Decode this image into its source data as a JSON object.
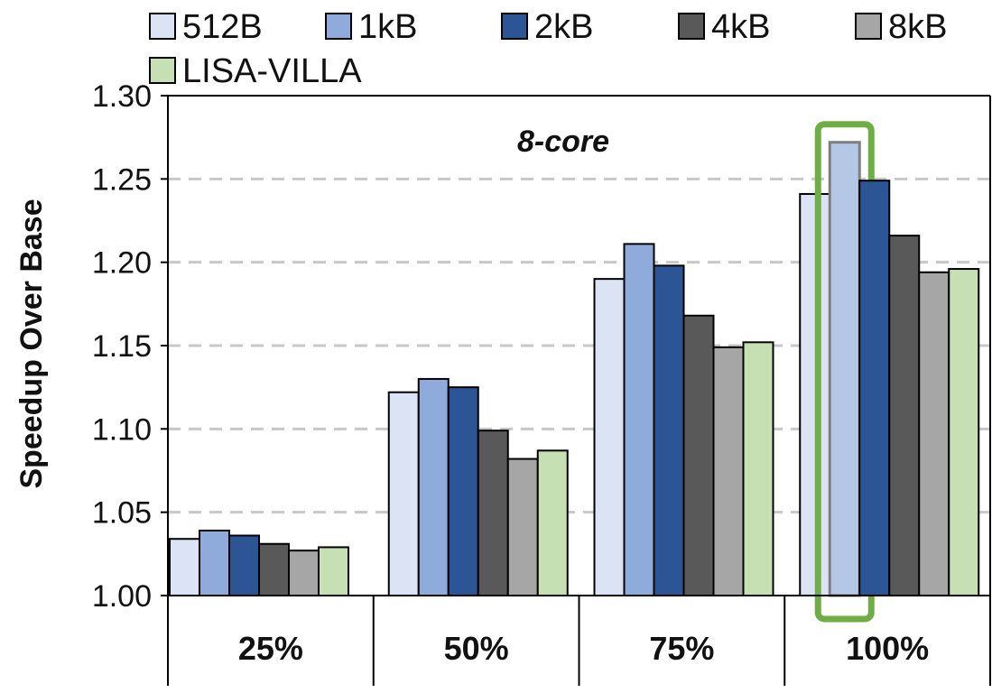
{
  "chart_data": {
    "type": "bar",
    "title": "",
    "annotation": "8-core",
    "xlabel": "",
    "ylabel": "Speedup Over Base",
    "ylim": [
      1.0,
      1.3
    ],
    "yticks": [
      "1.00",
      "1.05",
      "1.10",
      "1.15",
      "1.20",
      "1.25",
      "1.30"
    ],
    "grid": true,
    "legend_position": "top",
    "categories": [
      "25%",
      "50%",
      "75%",
      "100%"
    ],
    "series": [
      {
        "name": "512B",
        "color": "#dbe3f4",
        "values": [
          1.034,
          1.122,
          1.19,
          1.241
        ]
      },
      {
        "name": "1kB",
        "color": "#8eabdb",
        "values": [
          1.039,
          1.13,
          1.211,
          1.272
        ]
      },
      {
        "name": "2kB",
        "color": "#2c5595",
        "values": [
          1.036,
          1.125,
          1.198,
          1.249
        ]
      },
      {
        "name": "4kB",
        "color": "#595959",
        "values": [
          1.031,
          1.099,
          1.168,
          1.216
        ]
      },
      {
        "name": "8kB",
        "color": "#a6a6a6",
        "values": [
          1.027,
          1.082,
          1.149,
          1.194
        ]
      },
      {
        "name": "LISA-VILLA",
        "color": "#c6e0b4",
        "values": [
          1.029,
          1.087,
          1.152,
          1.196
        ]
      }
    ],
    "highlight": {
      "category": "100%",
      "series": "1kB",
      "color": "#70ad47",
      "fill": "#b4c7e7"
    }
  }
}
